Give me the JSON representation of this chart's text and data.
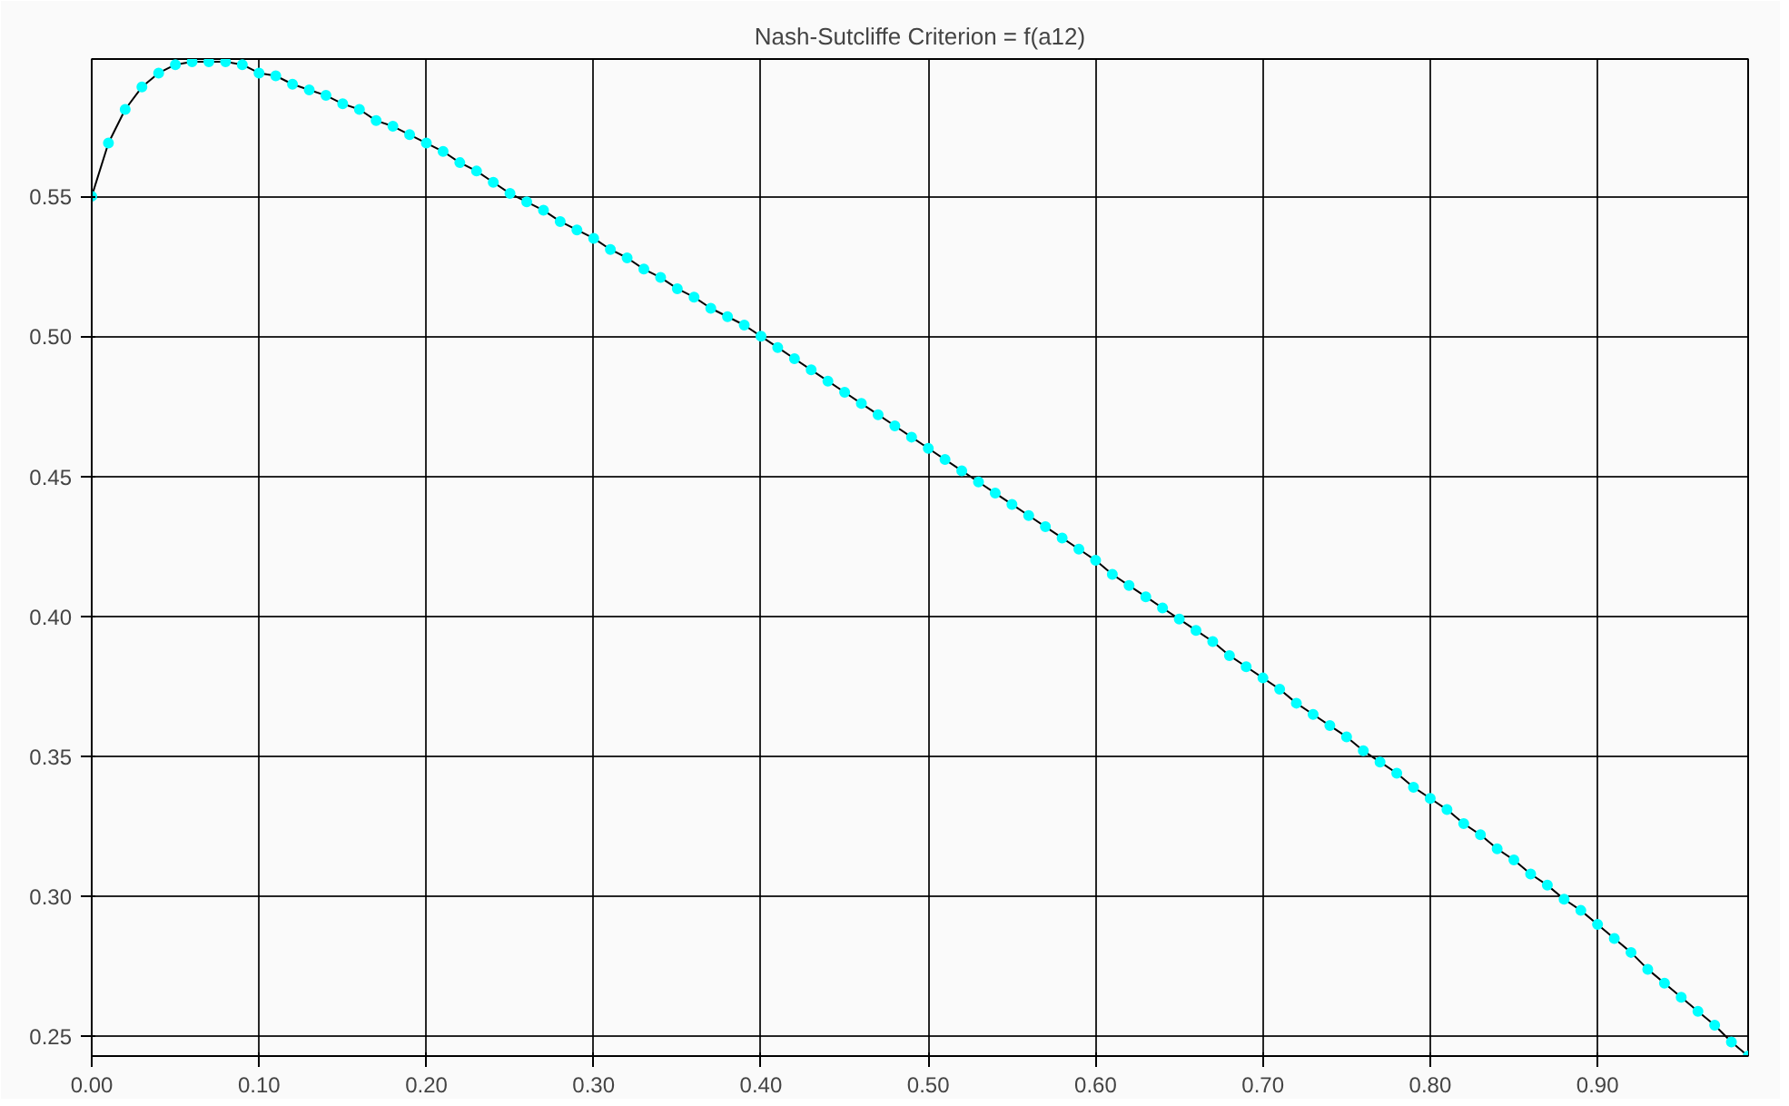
{
  "chart_data": {
    "type": "line",
    "title": "Nash-Sutcliffe Criterion = f(a12)",
    "x": [
      0.0,
      0.01,
      0.02,
      0.03,
      0.04,
      0.05,
      0.06,
      0.07,
      0.08,
      0.09,
      0.1,
      0.11,
      0.12,
      0.13,
      0.14,
      0.15,
      0.16,
      0.17,
      0.18,
      0.19,
      0.2,
      0.21,
      0.22,
      0.23,
      0.24,
      0.25,
      0.26,
      0.27,
      0.28,
      0.29,
      0.3,
      0.31,
      0.32,
      0.33,
      0.34,
      0.35,
      0.36,
      0.37,
      0.38,
      0.39,
      0.4,
      0.41,
      0.42,
      0.43,
      0.44,
      0.45,
      0.46,
      0.47,
      0.48,
      0.49,
      0.5,
      0.51,
      0.52,
      0.53,
      0.54,
      0.55,
      0.56,
      0.57,
      0.58,
      0.59,
      0.6,
      0.61,
      0.62,
      0.63,
      0.64,
      0.65,
      0.66,
      0.67,
      0.68,
      0.69,
      0.7,
      0.71,
      0.72,
      0.73,
      0.74,
      0.75,
      0.76,
      0.77,
      0.78,
      0.79,
      0.8,
      0.81,
      0.82,
      0.83,
      0.84,
      0.85,
      0.86,
      0.87,
      0.88,
      0.89,
      0.9,
      0.91,
      0.92,
      0.93,
      0.94,
      0.95,
      0.96,
      0.97,
      0.98,
      0.99
    ],
    "series": [
      {
        "color": "#00ffff",
        "values": [
          0.55,
          0.569,
          0.581,
          0.589,
          0.594,
          0.597,
          0.598,
          0.598,
          0.598,
          0.597,
          0.594,
          0.593,
          0.59,
          0.588,
          0.586,
          0.583,
          0.581,
          0.577,
          0.575,
          0.572,
          0.569,
          0.566,
          0.562,
          0.559,
          0.555,
          0.551,
          0.548,
          0.545,
          0.541,
          0.538,
          0.535,
          0.531,
          0.528,
          0.524,
          0.521,
          0.517,
          0.514,
          0.51,
          0.507,
          0.504,
          0.5,
          0.496,
          0.492,
          0.488,
          0.484,
          0.48,
          0.476,
          0.472,
          0.468,
          0.464,
          0.46,
          0.456,
          0.452,
          0.448,
          0.444,
          0.44,
          0.436,
          0.432,
          0.428,
          0.424,
          0.42,
          0.415,
          0.411,
          0.407,
          0.403,
          0.399,
          0.395,
          0.391,
          0.386,
          0.382,
          0.378,
          0.374,
          0.369,
          0.365,
          0.361,
          0.357,
          0.352,
          0.348,
          0.344,
          0.339,
          0.335,
          0.331,
          0.326,
          0.322,
          0.317,
          0.313,
          0.308,
          0.304,
          0.299,
          0.295,
          0.29,
          0.285,
          0.28,
          0.274,
          0.269,
          0.264,
          0.259,
          0.254,
          0.248,
          0.243
        ]
      }
    ],
    "xlim": [
      0,
      0.99
    ],
    "ylim": [
      0.243,
      0.599
    ],
    "xticks": [
      {
        "value": 0,
        "label": "0.00"
      },
      {
        "value": 0.1,
        "label": "0.10"
      },
      {
        "value": 0.2,
        "label": "0.20"
      },
      {
        "value": 0.3,
        "label": "0.30"
      },
      {
        "value": 0.4,
        "label": "0.40"
      },
      {
        "value": 0.5,
        "label": "0.50"
      },
      {
        "value": 0.6,
        "label": "0.60"
      },
      {
        "value": 0.7,
        "label": "0.70"
      },
      {
        "value": 0.8,
        "label": "0.80"
      },
      {
        "value": 0.9,
        "label": "0.90"
      }
    ],
    "yticks": [
      {
        "value": 0.25,
        "label": "0.25"
      },
      {
        "value": 0.3,
        "label": "0.30"
      },
      {
        "value": 0.35,
        "label": "0.35"
      },
      {
        "value": 0.4,
        "label": "0.40"
      },
      {
        "value": 0.45,
        "label": "0.45"
      },
      {
        "value": 0.5,
        "label": "0.50"
      },
      {
        "value": 0.55,
        "label": "0.55"
      }
    ],
    "grid": true,
    "marker": "circle"
  }
}
